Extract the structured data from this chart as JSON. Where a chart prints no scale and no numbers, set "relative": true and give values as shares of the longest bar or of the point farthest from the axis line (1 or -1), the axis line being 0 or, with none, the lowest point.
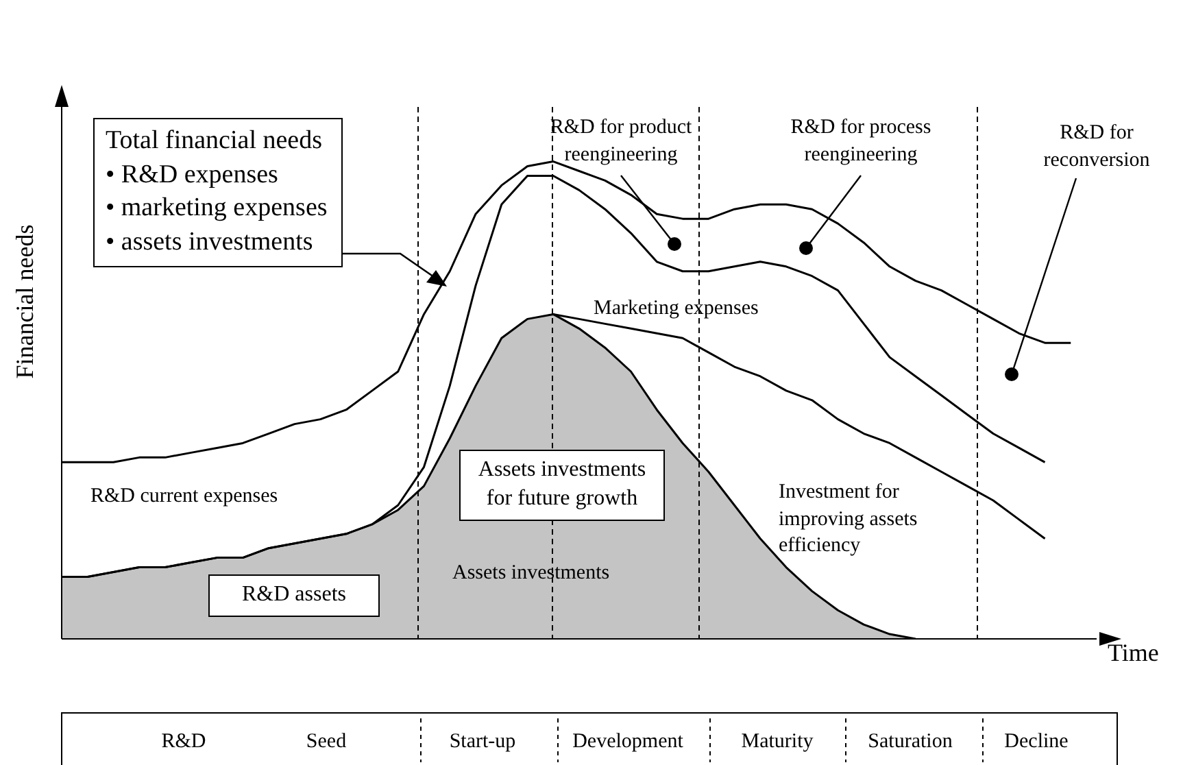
{
  "chart_data": {
    "type": "line",
    "relative": true,
    "xlabel": "Time",
    "ylabel": "Financial needs",
    "marker": "none",
    "line_style": "solid",
    "categories": [
      null,
      null,
      null,
      null,
      null,
      null,
      null,
      null,
      null,
      null,
      null,
      null,
      null,
      null,
      null,
      null,
      null,
      null,
      null,
      null,
      null,
      null,
      null,
      null,
      null,
      null,
      null,
      null,
      null,
      null,
      null,
      null,
      null,
      null,
      null,
      null,
      null,
      null,
      null,
      null
    ],
    "series": [
      {
        "type": "area",
        "color": "#c4c4c4",
        "values": [
          0.13,
          0.13,
          0.14,
          0.15,
          0.15,
          0.16,
          0.17,
          0.17,
          0.19,
          0.2,
          0.21,
          0.22,
          0.24,
          0.27,
          0.32,
          0.42,
          0.53,
          0.63,
          0.67,
          0.68,
          0.65,
          0.61,
          0.56,
          0.48,
          0.41,
          0.35,
          0.28,
          0.21,
          0.15,
          0.1,
          0.06,
          0.03,
          0.01,
          0,
          null,
          null,
          null,
          null,
          null,
          null
        ]
      },
      {
        "color": "#000000",
        "values": [
          0.37,
          0.37,
          0.37,
          0.38,
          0.38,
          0.39,
          0.4,
          0.41,
          0.43,
          0.45,
          0.46,
          0.48,
          0.52,
          0.56,
          0.68,
          0.77,
          0.89,
          0.95,
          0.99,
          1,
          0.98,
          0.96,
          0.93,
          0.89,
          0.88,
          0.88,
          0.9,
          0.91,
          0.91,
          0.9,
          0.87,
          0.83,
          0.78,
          0.75,
          0.73,
          0.7,
          0.67,
          0.64,
          0.62,
          0.62
        ]
      },
      {
        "color": "#000000",
        "values": [
          0.13,
          0.13,
          0.14,
          0.15,
          0.15,
          0.16,
          0.17,
          0.17,
          0.19,
          0.2,
          0.21,
          0.22,
          0.24,
          0.28,
          0.36,
          0.53,
          0.74,
          0.91,
          0.97,
          0.97,
          0.94,
          0.9,
          0.85,
          0.79,
          0.77,
          0.77,
          0.78,
          0.79,
          0.78,
          0.76,
          0.73,
          0.66,
          0.59,
          0.55,
          0.51,
          0.47,
          0.43,
          0.4,
          0.37,
          null
        ]
      },
      {
        "color": "#000000",
        "values": [
          null,
          null,
          null,
          null,
          null,
          null,
          null,
          null,
          null,
          null,
          null,
          null,
          null,
          null,
          null,
          null,
          null,
          null,
          null,
          0.68,
          0.67,
          0.66,
          0.65,
          0.64,
          0.63,
          0.6,
          0.57,
          0.55,
          0.52,
          0.5,
          0.46,
          0.43,
          0.41,
          0.38,
          0.35,
          0.32,
          0.29,
          0.25,
          0.21,
          null
        ]
      }
    ],
    "annotations": [
      "Total financial needs\n• R&D expenses\n• marketing expenses\n• assets investments",
      "R&D for product reengineering",
      "R&D for process reengineering",
      "R&D for reconversion",
      "Marketing expenses",
      "R&D current expenses",
      "Assets investments for future growth",
      "Investment  for improving assets efficiency",
      "Assets investments",
      "R&D assets",
      "R&D",
      "Seed",
      "Start-up",
      "Development",
      "Maturity",
      "Saturation",
      "Decline"
    ]
  }
}
